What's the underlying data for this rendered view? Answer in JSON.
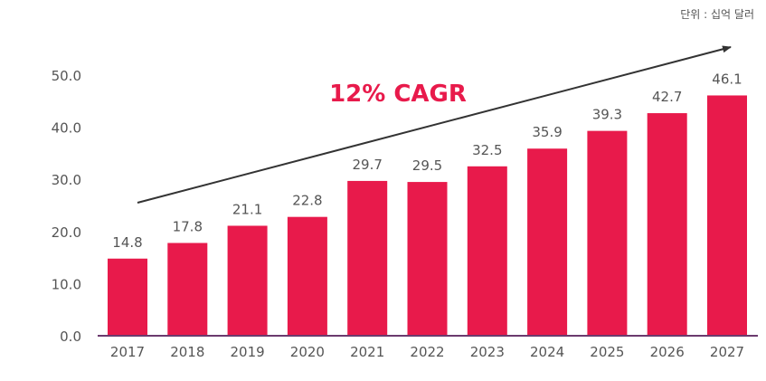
{
  "unit_note": "단위 : 십억 달러",
  "annotation": "12% CAGR",
  "colors": {
    "bar": "#E81A4B",
    "axis": "#6B3A6E",
    "text": "#555555",
    "arrow": "#333333",
    "annotation": "#E81A4B"
  },
  "chart_data": {
    "type": "bar",
    "categories": [
      "2017",
      "2018",
      "2019",
      "2020",
      "2021",
      "2022",
      "2023",
      "2024",
      "2025",
      "2026",
      "2027"
    ],
    "values": [
      14.8,
      17.8,
      21.1,
      22.8,
      29.7,
      29.5,
      32.5,
      35.9,
      39.3,
      42.7,
      46.1
    ],
    "value_labels": [
      "14.8",
      "17.8",
      "21.1",
      "22.8",
      "29.7",
      "29.5",
      "32.5",
      "35.9",
      "39.3",
      "42.7",
      "46.1"
    ],
    "y_ticks": [
      "0.0",
      "10.0",
      "20.0",
      "30.0",
      "40.0",
      "50.0"
    ],
    "ylim": [
      0,
      50
    ],
    "grid": false,
    "legend": "none"
  }
}
